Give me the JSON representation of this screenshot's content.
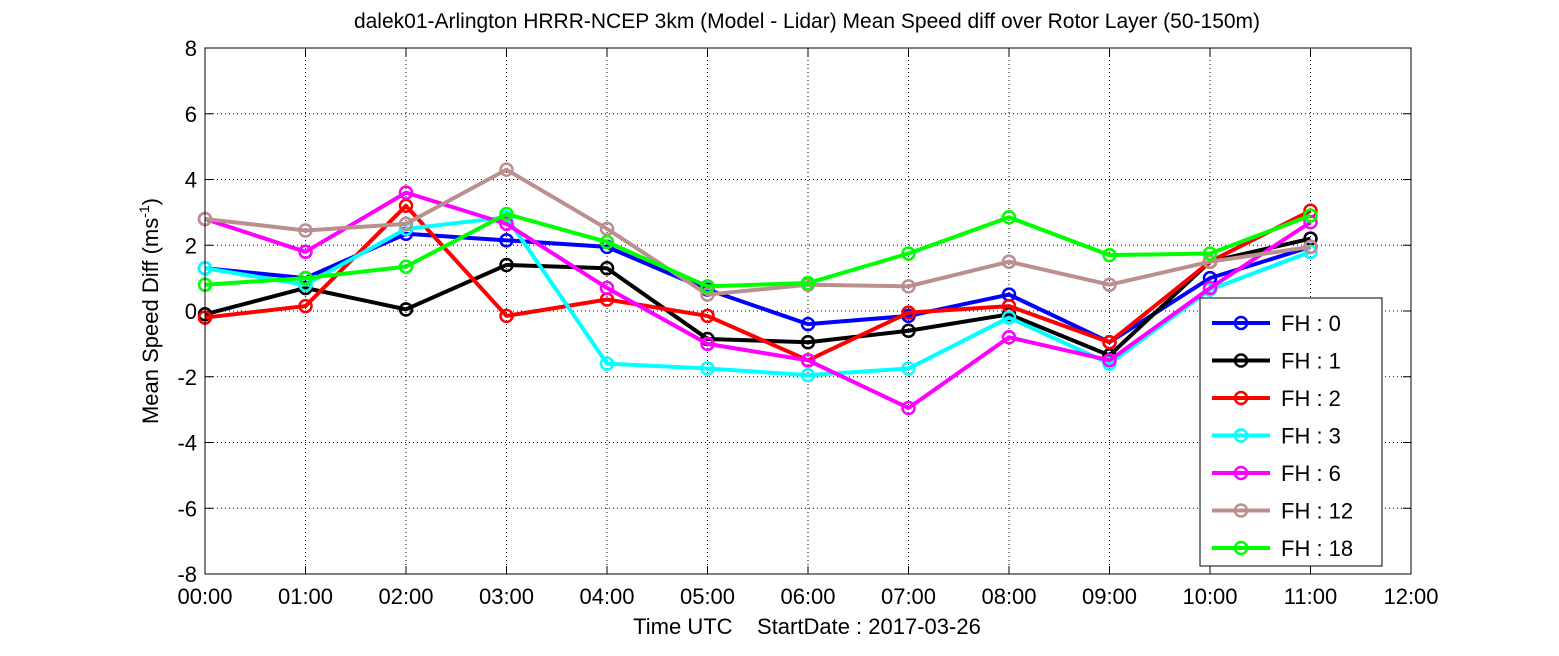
{
  "chart_data": {
    "type": "line",
    "title": "dalek01-Arlington HRRR-NCEP 3km (Model - Lidar) Mean Speed diff over Rotor Layer (50-150m)",
    "xlabel": "Time UTC    StartDate : 2017-03-26",
    "ylabel_main": "Mean Speed Diff (ms",
    "ylabel_sup": "-1",
    "ylabel_close": ")",
    "x_tick_labels": [
      "00:00",
      "01:00",
      "02:00",
      "03:00",
      "04:00",
      "05:00",
      "06:00",
      "07:00",
      "08:00",
      "09:00",
      "10:00",
      "11:00",
      "12:00"
    ],
    "y_tick_labels": [
      "-8",
      "-6",
      "-4",
      "-2",
      "0",
      "2",
      "4",
      "6",
      "8"
    ],
    "xlim": [
      0,
      12
    ],
    "ylim": [
      -8,
      8
    ],
    "y_ticks": [
      -8,
      -6,
      -4,
      -2,
      0,
      2,
      4,
      6,
      8
    ],
    "grid": true,
    "legend_position": "bottom-right",
    "x": [
      0,
      1,
      2,
      3,
      4,
      5,
      6,
      7,
      8,
      9,
      10,
      11
    ],
    "series": [
      {
        "name": "FH : 0",
        "color": "#0000ff",
        "values": [
          1.3,
          1.0,
          2.35,
          2.15,
          1.95,
          0.65,
          -0.4,
          -0.15,
          0.5,
          -0.95,
          1.0,
          1.95
        ]
      },
      {
        "name": "FH : 1",
        "color": "#000000",
        "values": [
          -0.1,
          0.7,
          0.05,
          1.4,
          1.3,
          -0.85,
          -0.95,
          -0.6,
          -0.1,
          -1.35,
          1.5,
          2.2
        ]
      },
      {
        "name": "FH : 2",
        "color": "#ff0000",
        "values": [
          -0.2,
          0.15,
          3.2,
          -0.15,
          0.35,
          -0.15,
          -1.5,
          -0.05,
          0.15,
          -0.95,
          1.5,
          3.05
        ]
      },
      {
        "name": "FH : 3",
        "color": "#00ffff",
        "values": [
          1.3,
          0.8,
          2.5,
          2.85,
          -1.6,
          -1.75,
          -1.95,
          -1.75,
          -0.2,
          -1.6,
          0.65,
          1.8
        ]
      },
      {
        "name": "FH : 6",
        "color": "#ff00ff",
        "values": [
          2.8,
          1.8,
          3.6,
          2.65,
          0.7,
          -1.0,
          -1.5,
          -2.95,
          -0.8,
          -1.5,
          0.7,
          2.7
        ]
      },
      {
        "name": "FH : 12",
        "color": "#bc8f8f",
        "values": [
          2.8,
          2.45,
          2.65,
          4.3,
          2.5,
          0.5,
          0.8,
          0.75,
          1.5,
          0.8,
          1.5,
          1.95
        ]
      },
      {
        "name": "FH : 18",
        "color": "#00ff00",
        "values": [
          0.8,
          1.0,
          1.35,
          2.95,
          2.1,
          0.75,
          0.85,
          1.75,
          2.85,
          1.7,
          1.75,
          2.9
        ]
      }
    ]
  }
}
